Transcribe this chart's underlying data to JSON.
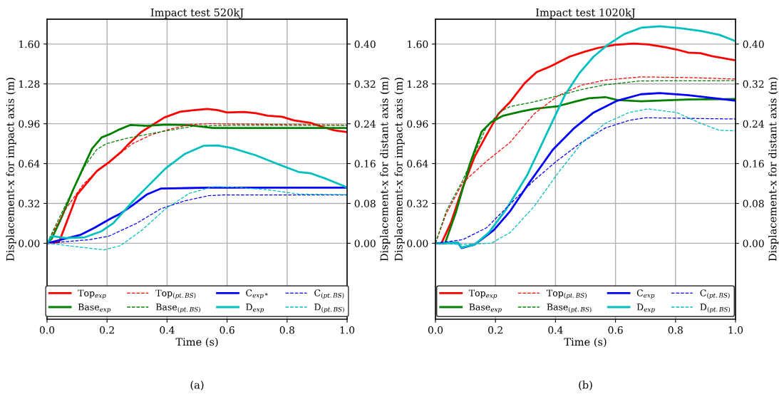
{
  "chart_data": [
    {
      "type": "line",
      "title": "Impact test 520kJ",
      "xlabel": "Time (s)",
      "ylabel": "Displacement-x for impact axis (m)",
      "y2label": "Displacement-x for distant axis (m)",
      "annotations": [
        "(a)"
      ],
      "xlim": [
        0,
        1
      ],
      "xticks": [
        {
          "value": 0,
          "label": "0.0"
        },
        {
          "value": 0.2,
          "label": "0.2"
        },
        {
          "value": 0.4,
          "label": "0.4"
        },
        {
          "value": 0.6,
          "label": "0.6"
        },
        {
          "value": 0.8,
          "label": "0.8"
        },
        {
          "value": 1,
          "label": "1.0"
        }
      ],
      "ylim": [
        -0.61,
        1.8
      ],
      "yticks": [
        {
          "value": 0,
          "label": "0.00"
        },
        {
          "value": 0.32,
          "label": "0.32"
        },
        {
          "value": 0.64,
          "label": "0.64"
        },
        {
          "value": 0.96,
          "label": "0.96"
        },
        {
          "value": 1.28,
          "label": "1.28"
        },
        {
          "value": 1.6,
          "label": "1.60"
        }
      ],
      "y2lim": [
        -0.1525,
        0.45
      ],
      "y2ticks": [
        {
          "value": 0,
          "label": "0.00"
        },
        {
          "value": 0.08,
          "label": "0.08"
        },
        {
          "value": 0.16,
          "label": "0.16"
        },
        {
          "value": 0.24,
          "label": "0.24"
        },
        {
          "value": 0.32,
          "label": "0.32"
        },
        {
          "value": 0.4,
          "label": "0.40"
        }
      ],
      "grid": true,
      "legend": "bottom",
      "series": [
        {
          "name": "Top$_{exp}$",
          "color": "#ff0000",
          "line_style": "solid",
          "x": [
            0,
            0.04,
            0.1,
            0.166,
            0.206,
            0.245,
            0.269,
            0.312,
            0.348,
            0.391,
            0.443,
            0.49,
            0.534,
            0.569,
            0.6,
            0.656,
            0.696,
            0.735,
            0.783,
            0.822,
            0.877,
            0.917,
            0.957,
            1.0
          ],
          "values": [
            0,
            0.01,
            0.39,
            0.58,
            0.65,
            0.73,
            0.79,
            0.89,
            0.945,
            1.01,
            1.056,
            1.069,
            1.079,
            1.069,
            1.05,
            1.054,
            1.044,
            1.025,
            1.016,
            0.987,
            0.968,
            0.935,
            0.907,
            0.893
          ]
        },
        {
          "name": "Base$_{exp}$",
          "color": "#008000",
          "line_style": "solid",
          "x": [
            0,
            0.016,
            0.047,
            0.087,
            0.123,
            0.15,
            0.182,
            0.213,
            0.237,
            0.277,
            0.332,
            0.395,
            0.474,
            0.553,
            1.0
          ],
          "values": [
            0,
            0.038,
            0.2,
            0.43,
            0.62,
            0.76,
            0.85,
            0.88,
            0.91,
            0.95,
            0.943,
            0.953,
            0.949,
            0.926,
            0.926
          ]
        },
        {
          "name": "Top$_{(pt.BS)}$",
          "color": "#ff0000",
          "line_style": "dashed",
          "x": [
            0,
            0.063,
            0.119,
            0.174,
            0.221,
            0.285,
            0.348,
            0.411,
            0.474,
            0.538,
            1.0
          ],
          "values": [
            0,
            0.277,
            0.468,
            0.6,
            0.678,
            0.8,
            0.872,
            0.918,
            0.951,
            0.96,
            0.949
          ]
        },
        {
          "name": "Base$_{(pt.BS)}$",
          "color": "#008000",
          "line_style": "dashed",
          "x": [
            0,
            0.063,
            0.126,
            0.166,
            0.198,
            0.26,
            0.34,
            0.419,
            0.49,
            0.617,
            1.0
          ],
          "values": [
            0,
            0.315,
            0.62,
            0.754,
            0.8,
            0.84,
            0.878,
            0.912,
            0.941,
            0.947,
            0.947
          ]
        },
        {
          "name": "C$_{exp*}$",
          "color": "#0000ff",
          "line_style": "solid",
          "x": [
            0,
            0.063,
            0.111,
            0.158,
            0.213,
            0.245,
            0.285,
            0.332,
            0.379,
            0.458,
            0.538,
            1.0
          ],
          "values": [
            0,
            0.038,
            0.067,
            0.124,
            0.2,
            0.239,
            0.305,
            0.391,
            0.439,
            0.443,
            0.447,
            0.447
          ]
        },
        {
          "name": "D$_{exp}$",
          "color": "#00bfbf",
          "line_style": "solid",
          "x": [
            0,
            0.016,
            0.063,
            0.126,
            0.18,
            0.221,
            0.285,
            0.34,
            0.395,
            0.458,
            0.522,
            0.569,
            0.617,
            0.696,
            0.775,
            0.838,
            0.877,
            0.933,
            1.0
          ],
          "values": [
            0,
            0.057,
            0.042,
            0.048,
            0.095,
            0.162,
            0.334,
            0.468,
            0.601,
            0.716,
            0.783,
            0.786,
            0.764,
            0.706,
            0.63,
            0.573,
            0.563,
            0.515,
            0.449
          ]
        },
        {
          "name": "C$_{(pt.BS)}$",
          "color": "#0000ff",
          "line_style": "dashed",
          "x": [
            0,
            0.142,
            0.206,
            0.3,
            0.379,
            0.458,
            0.538,
            0.585,
            1.0
          ],
          "values": [
            0,
            0.029,
            0.057,
            0.162,
            0.277,
            0.34,
            0.382,
            0.388,
            0.388
          ]
        },
        {
          "name": "D$_{(pt.BS)}$",
          "color": "#00bfbf",
          "line_style": "dashed",
          "x": [
            0,
            0.103,
            0.19,
            0.245,
            0.316,
            0.395,
            0.474,
            0.553,
            0.617,
            0.735,
            0.838,
            1.0
          ],
          "values": [
            0,
            -0.029,
            -0.053,
            -0.019,
            0.105,
            0.277,
            0.4,
            0.454,
            0.452,
            0.43,
            0.395,
            0.391
          ]
        }
      ]
    },
    {
      "type": "line",
      "title": "Impact test 1020kJ",
      "xlabel": "Time (s)",
      "ylabel": "Displacement-x for impact axis (m)",
      "y2label": "Displacement-x for distant axis (m)",
      "annotations": [
        "(b)"
      ],
      "xlim": [
        0,
        1
      ],
      "xticks": [
        {
          "value": 0,
          "label": "0.0"
        },
        {
          "value": 0.2,
          "label": "0.2"
        },
        {
          "value": 0.4,
          "label": "0.4"
        },
        {
          "value": 0.6,
          "label": "0.6"
        },
        {
          "value": 0.8,
          "label": "0.8"
        },
        {
          "value": 1,
          "label": "1.0"
        }
      ],
      "ylim": [
        -0.61,
        1.8
      ],
      "yticks": [
        {
          "value": 0,
          "label": "0.00"
        },
        {
          "value": 0.32,
          "label": "0.32"
        },
        {
          "value": 0.64,
          "label": "0.64"
        },
        {
          "value": 0.96,
          "label": "0.96"
        },
        {
          "value": 1.28,
          "label": "1.28"
        },
        {
          "value": 1.6,
          "label": "1.60"
        }
      ],
      "y2lim": [
        -0.1525,
        0.45
      ],
      "y2ticks": [
        {
          "value": 0,
          "label": "0.00"
        },
        {
          "value": 0.08,
          "label": "0.08"
        },
        {
          "value": 0.16,
          "label": "0.16"
        },
        {
          "value": 0.24,
          "label": "0.24"
        },
        {
          "value": 0.32,
          "label": "0.32"
        },
        {
          "value": 0.4,
          "label": "0.40"
        }
      ],
      "grid": true,
      "legend": "bottom",
      "series": [
        {
          "name": "Top$_{exp}$",
          "color": "#ff0000",
          "line_style": "solid",
          "x": [
            0,
            0.02,
            0.051,
            0.091,
            0.131,
            0.17,
            0.21,
            0.249,
            0.297,
            0.337,
            0.384,
            0.447,
            0.495,
            0.542,
            0.598,
            0.661,
            0.709,
            0.764,
            0.804,
            0.843,
            0.883,
            0.922,
            1.0
          ],
          "values": [
            0,
            0,
            0.162,
            0.449,
            0.697,
            0.869,
            1.04,
            1.136,
            1.285,
            1.374,
            1.422,
            1.499,
            1.537,
            1.569,
            1.594,
            1.604,
            1.597,
            1.575,
            1.556,
            1.531,
            1.527,
            1.502,
            1.47
          ]
        },
        {
          "name": "Base$_{exp}$",
          "color": "#008000",
          "line_style": "solid",
          "x": [
            0,
            0.032,
            0.067,
            0.115,
            0.154,
            0.186,
            0.226,
            0.289,
            0.329,
            0.408,
            0.463,
            0.511,
            0.566,
            0.606,
            0.685,
            0.843,
            1.0
          ],
          "values": [
            0,
            0,
            0.239,
            0.64,
            0.897,
            0.974,
            1.025,
            1.06,
            1.079,
            1.101,
            1.136,
            1.165,
            1.174,
            1.151,
            1.14,
            1.155,
            1.159
          ]
        },
        {
          "name": "Top$_{(pt.BS)}$",
          "color": "#ff0000",
          "line_style": "dashed",
          "x": [
            0,
            0.036,
            0.091,
            0.17,
            0.249,
            0.329,
            0.408,
            0.487,
            0.566,
            0.685,
            0.843,
            1.0
          ],
          "values": [
            0,
            0.239,
            0.487,
            0.659,
            0.811,
            1.04,
            1.184,
            1.27,
            1.311,
            1.336,
            1.331,
            1.319
          ]
        },
        {
          "name": "Base$_{(pt.BS)}$",
          "color": "#008000",
          "line_style": "dashed",
          "x": [
            0,
            0.036,
            0.091,
            0.17,
            0.218,
            0.249,
            0.329,
            0.408,
            0.487,
            0.566,
            0.685,
            1.0
          ],
          "values": [
            0,
            0.258,
            0.506,
            0.935,
            1.06,
            1.098,
            1.136,
            1.184,
            1.235,
            1.273,
            1.304,
            1.306
          ]
        },
        {
          "name": "C$_{exp}$",
          "color": "#0000ff",
          "line_style": "solid",
          "x": [
            0,
            0.075,
            0.087,
            0.131,
            0.194,
            0.249,
            0.313,
            0.392,
            0.463,
            0.527,
            0.606,
            0.685,
            0.748,
            0.843,
            1.0
          ],
          "values": [
            0,
            0.004,
            -0.038,
            -0.01,
            0.105,
            0.258,
            0.487,
            0.754,
            0.926,
            1.05,
            1.145,
            1.197,
            1.206,
            1.189,
            1.145
          ]
        },
        {
          "name": "D$_{exp}$",
          "color": "#00bfbf",
          "line_style": "solid",
          "x": [
            0,
            0.075,
            0.087,
            0.131,
            0.178,
            0.234,
            0.305,
            0.376,
            0.432,
            0.479,
            0.527,
            0.574,
            0.629,
            0.685,
            0.748,
            0.812,
            0.883,
            0.946,
            1.0
          ],
          "values": [
            0,
            0.004,
            -0.034,
            -0.01,
            0.086,
            0.267,
            0.544,
            0.907,
            1.193,
            1.365,
            1.499,
            1.594,
            1.68,
            1.731,
            1.743,
            1.728,
            1.705,
            1.674,
            1.623
          ]
        },
        {
          "name": "C$_{(pt.BS)}$",
          "color": "#0000ff",
          "line_style": "dashed",
          "x": [
            0,
            0.091,
            0.17,
            0.249,
            0.329,
            0.408,
            0.487,
            0.566,
            0.645,
            0.701,
            1.0
          ],
          "values": [
            0,
            0.029,
            0.124,
            0.315,
            0.506,
            0.668,
            0.811,
            0.926,
            0.987,
            1.008,
            0.998
          ]
        },
        {
          "name": "D$_{(pt.BS)}$",
          "color": "#00bfbf",
          "line_style": "dashed",
          "x": [
            0,
            0.091,
            0.186,
            0.249,
            0.329,
            0.408,
            0.487,
            0.566,
            0.645,
            0.709,
            0.804,
            0.883,
            0.946,
            1.0
          ],
          "values": [
            0,
            -0.01,
            0,
            0.086,
            0.296,
            0.563,
            0.802,
            0.964,
            1.05,
            1.079,
            1.05,
            0.964,
            0.907,
            0.903
          ]
        }
      ]
    }
  ]
}
